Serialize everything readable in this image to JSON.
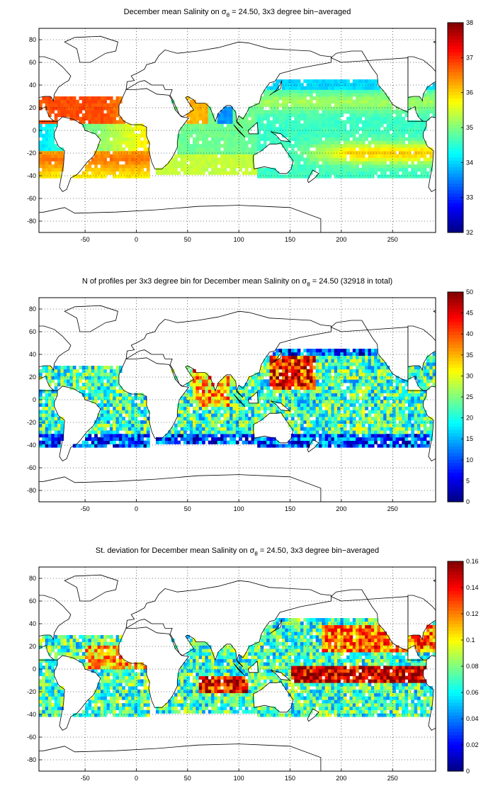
{
  "panels": [
    {
      "title_pre": "December mean Salinity on ",
      "sigma": "σ",
      "sigma_sub": "θ",
      "title_post": " = 24.50, 3x3 degree bin−averaged",
      "field": "salinity",
      "colorbar": {
        "min": 32,
        "max": 38,
        "ticks": [
          "32",
          "33",
          "34",
          "35",
          "36",
          "37",
          "38"
        ]
      }
    },
    {
      "title_pre": "N of profiles per 3x3 degree bin for December mean Salinity on ",
      "sigma": "σ",
      "sigma_sub": "θ",
      "title_post": " = 24.50 (32918 in total)",
      "field": "profiles",
      "colorbar": {
        "min": 0,
        "max": 50,
        "ticks": [
          "0",
          "5",
          "10",
          "15",
          "20",
          "25",
          "30",
          "35",
          "40",
          "45",
          "50"
        ]
      }
    },
    {
      "title_pre": "St. deviation for December mean Salinity on ",
      "sigma": "σ",
      "sigma_sub": "θ",
      "title_post": " = 24.50, 3x3 degree bin−averaged",
      "field": "std",
      "colorbar": {
        "min": 0,
        "max": 0.16,
        "ticks": [
          "0",
          "0.02",
          "0.04",
          "0.06",
          "0.08",
          "0.1",
          "0.12",
          "0.14",
          "0.16"
        ]
      }
    }
  ],
  "axes": {
    "xlim": [
      -95,
      292
    ],
    "ylim": [
      -90,
      90
    ],
    "xticks": [
      "-50",
      "0",
      "50",
      "100",
      "150",
      "200",
      "250"
    ],
    "yticks": [
      "-80",
      "-60",
      "-40",
      "-20",
      "0",
      "20",
      "40",
      "60",
      "80"
    ],
    "grid": "dotted"
  },
  "colormap": "jet"
}
